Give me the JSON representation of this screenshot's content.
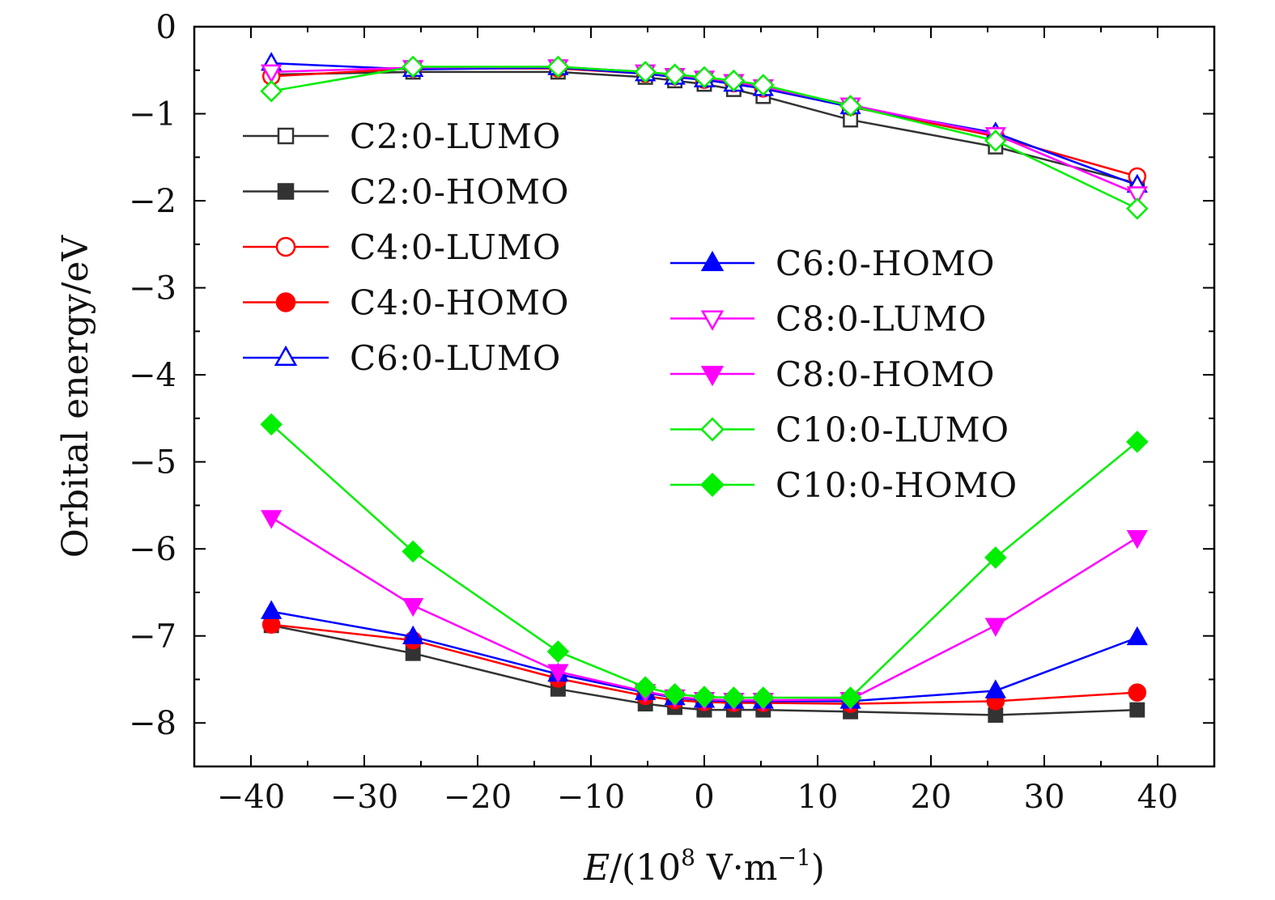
{
  "chart_data": {
    "type": "line",
    "xlabel": "E/(10^8 V·m^-1)",
    "xlabel_parts": {
      "var": "E",
      "open": "/(10",
      "exp": "8",
      "unit": " V·m",
      "unit_exp": "−1",
      "close": ")"
    },
    "ylabel": "Orbital energy/eV",
    "xlim": [
      -45,
      45
    ],
    "ylim": [
      -8.5,
      0
    ],
    "xticks": [
      -40,
      -30,
      -20,
      -10,
      0,
      10,
      20,
      30,
      40
    ],
    "xtick_labels": [
      "−40",
      "−30",
      "−20",
      "−10",
      "0",
      "10",
      "20",
      "30",
      "40"
    ],
    "yticks": [
      0,
      -1,
      -2,
      -3,
      -4,
      -5,
      -6,
      -7,
      -8
    ],
    "ytick_labels": [
      "0",
      "−1",
      "−2",
      "−3",
      "−4",
      "−5",
      "−6",
      "−7",
      "−8"
    ],
    "grid": false,
    "legend_placement": "upper-left and center-right (two columns)",
    "x": [
      -38.2,
      -25.7,
      -12.9,
      -5.2,
      -2.6,
      0,
      2.6,
      5.2,
      12.9,
      25.7,
      38.2
    ],
    "series": [
      {
        "name": "C2:0-LUMO",
        "color": "#333333",
        "marker": "square",
        "filled": false,
        "values": [
          -0.55,
          -0.52,
          -0.52,
          -0.58,
          -0.62,
          -0.66,
          -0.72,
          -0.8,
          -1.07,
          -1.38,
          -1.8
        ]
      },
      {
        "name": "C2:0-HOMO",
        "color": "#333333",
        "marker": "square",
        "filled": true,
        "values": [
          -6.88,
          -7.2,
          -7.61,
          -7.78,
          -7.82,
          -7.85,
          -7.85,
          -7.85,
          -7.87,
          -7.91,
          -7.85
        ]
      },
      {
        "name": "C4:0-LUMO",
        "color": "#ff0000",
        "marker": "circle",
        "filled": false,
        "values": [
          -0.57,
          -0.48,
          -0.48,
          -0.54,
          -0.57,
          -0.61,
          -0.65,
          -0.71,
          -0.92,
          -1.26,
          -1.72
        ]
      },
      {
        "name": "C4:0-HOMO",
        "color": "#ff0000",
        "marker": "circle",
        "filled": true,
        "values": [
          -6.87,
          -7.05,
          -7.49,
          -7.69,
          -7.74,
          -7.76,
          -7.77,
          -7.77,
          -7.78,
          -7.75,
          -7.65
        ]
      },
      {
        "name": "C6:0-LUMO",
        "color": "#0000ff",
        "marker": "triangle-up",
        "filled": false,
        "values": [
          -0.42,
          -0.49,
          -0.47,
          -0.54,
          -0.58,
          -0.61,
          -0.66,
          -0.71,
          -0.92,
          -1.22,
          -1.82
        ]
      },
      {
        "name": "C6:0-HOMO",
        "color": "#0000ff",
        "marker": "triangle-up",
        "filled": true,
        "values": [
          -6.72,
          -7.01,
          -7.44,
          -7.65,
          -7.71,
          -7.74,
          -7.75,
          -7.75,
          -7.75,
          -7.63,
          -7.02
        ]
      },
      {
        "name": "C8:0-LUMO",
        "color": "#ff00ff",
        "marker": "triangle-down",
        "filled": false,
        "values": [
          -0.52,
          -0.47,
          -0.46,
          -0.52,
          -0.56,
          -0.59,
          -0.63,
          -0.69,
          -0.9,
          -1.24,
          -1.92
        ]
      },
      {
        "name": "C8:0-HOMO",
        "color": "#ff00ff",
        "marker": "triangle-down",
        "filled": true,
        "values": [
          -5.64,
          -6.65,
          -7.41,
          -7.64,
          -7.7,
          -7.73,
          -7.74,
          -7.74,
          -7.73,
          -6.88,
          -5.87
        ]
      },
      {
        "name": "C10:0-LUMO",
        "color": "#00ee00",
        "marker": "diamond",
        "filled": false,
        "values": [
          -0.74,
          -0.46,
          -0.46,
          -0.52,
          -0.55,
          -0.58,
          -0.62,
          -0.67,
          -0.91,
          -1.31,
          -2.09
        ]
      },
      {
        "name": "C10:0-HOMO",
        "color": "#00ee00",
        "marker": "diamond",
        "filled": true,
        "values": [
          -4.57,
          -6.03,
          -7.18,
          -7.59,
          -7.67,
          -7.7,
          -7.71,
          -7.71,
          -7.71,
          -6.1,
          -4.77
        ]
      }
    ]
  }
}
